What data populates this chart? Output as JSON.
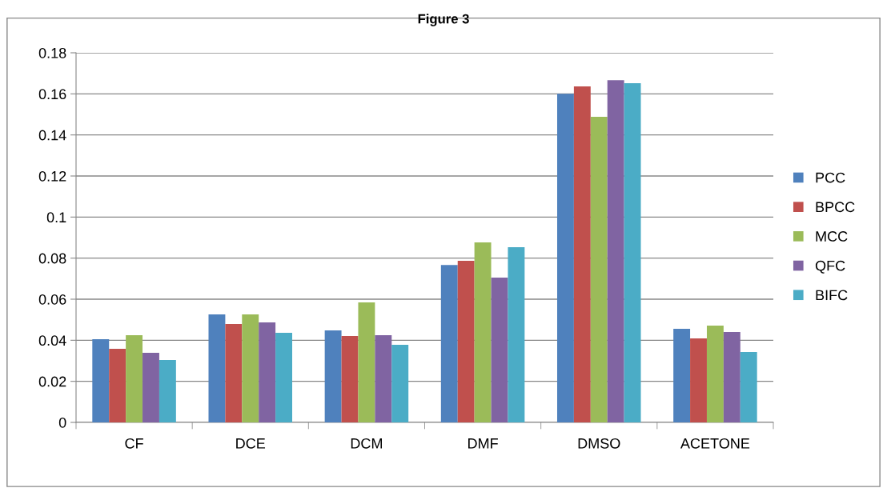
{
  "chart_data": {
    "type": "bar",
    "title": "Figure 3",
    "categories": [
      "CF",
      "DCE",
      "DCM",
      "DMF",
      "DMSO",
      "ACETONE"
    ],
    "series": [
      {
        "name": "PCC",
        "color": "#4f81bd",
        "values": [
          0.0405,
          0.0526,
          0.0448,
          0.0767,
          0.16,
          0.0456
        ]
      },
      {
        "name": "BPCC",
        "color": "#c0504d",
        "values": [
          0.0358,
          0.0479,
          0.0421,
          0.0787,
          0.1636,
          0.0409
        ]
      },
      {
        "name": "MCC",
        "color": "#9bbb59",
        "values": [
          0.0425,
          0.0526,
          0.0584,
          0.0877,
          0.1488,
          0.0471
        ]
      },
      {
        "name": "QFC",
        "color": "#8064a2",
        "values": [
          0.0339,
          0.0487,
          0.0425,
          0.0705,
          0.1667,
          0.044
        ]
      },
      {
        "name": "BIFC",
        "color": "#4bacc6",
        "values": [
          0.0304,
          0.0436,
          0.0378,
          0.0853,
          0.1652,
          0.0343
        ]
      }
    ],
    "ylim": [
      0,
      0.18
    ],
    "yticks": [
      0,
      0.02,
      0.04,
      0.06,
      0.08,
      0.1,
      0.12,
      0.14,
      0.16,
      0.18
    ],
    "grid": "y",
    "legend": "right"
  }
}
